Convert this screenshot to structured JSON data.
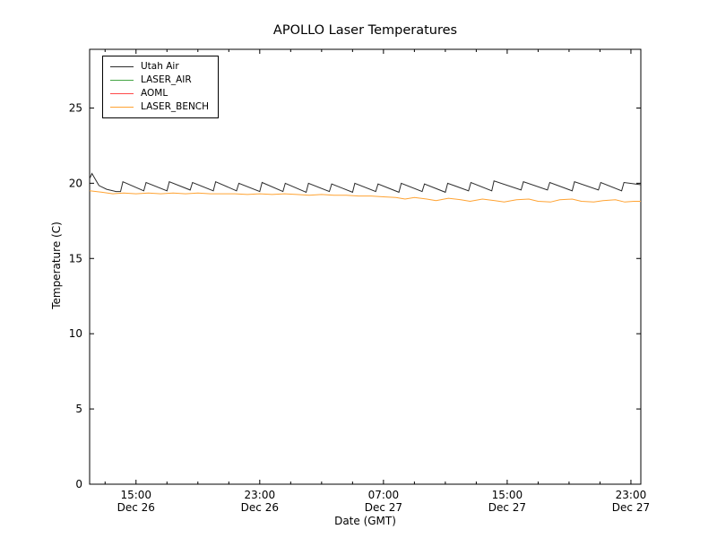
{
  "title": "APOLLO Laser Temperatures",
  "xlabel": "Date (GMT)",
  "ylabel": "Temperature (C)",
  "chart_data": {
    "type": "line",
    "title": "APOLLO Laser Temperatures",
    "xlabel": "Date (GMT)",
    "ylabel": "Temperature (C)",
    "x_unit": "hours since Dec 26 00:00 GMT",
    "xlim": [
      12.0,
      47.64
    ],
    "ylim": [
      0,
      28.9
    ],
    "grid": false,
    "legend_position": "upper left",
    "y_ticks": [
      0,
      5,
      10,
      15,
      20,
      25
    ],
    "x_ticks": [
      {
        "hour": 15,
        "time": "15:00",
        "date": "Dec 26"
      },
      {
        "hour": 23,
        "time": "23:00",
        "date": "Dec 26"
      },
      {
        "hour": 31,
        "time": "07:00",
        "date": "Dec 27"
      },
      {
        "hour": 39,
        "time": "15:00",
        "date": "Dec 27"
      },
      {
        "hour": 47,
        "time": "23:00",
        "date": "Dec 27"
      }
    ],
    "x_minor_tick_step_hours": 2,
    "legend": [
      {
        "label": "Utah Air",
        "color": "#2b2b2b"
      },
      {
        "label": "LASER_AIR",
        "color": "#44a544"
      },
      {
        "label": "AOML",
        "color": "#ff4a4a"
      },
      {
        "label": "LASER_BENCH",
        "color": "#ffa333"
      }
    ],
    "series": [
      {
        "name": "Utah Air",
        "color": "#2b2b2b",
        "points": [
          [
            12.0,
            20.3
          ],
          [
            12.15,
            20.65
          ],
          [
            12.6,
            19.85
          ],
          [
            13.1,
            19.6
          ],
          [
            13.7,
            19.45
          ],
          [
            14.0,
            19.45
          ],
          [
            14.15,
            20.1
          ],
          [
            15.5,
            19.5
          ],
          [
            15.65,
            20.05
          ],
          [
            17.0,
            19.5
          ],
          [
            17.15,
            20.1
          ],
          [
            18.5,
            19.55
          ],
          [
            18.65,
            20.05
          ],
          [
            20.0,
            19.5
          ],
          [
            20.15,
            20.1
          ],
          [
            21.5,
            19.5
          ],
          [
            21.65,
            20.0
          ],
          [
            23.0,
            19.45
          ],
          [
            23.15,
            20.05
          ],
          [
            24.5,
            19.45
          ],
          [
            24.65,
            20.0
          ],
          [
            26.0,
            19.4
          ],
          [
            26.15,
            20.0
          ],
          [
            27.5,
            19.45
          ],
          [
            27.65,
            19.95
          ],
          [
            29.0,
            19.4
          ],
          [
            29.15,
            20.0
          ],
          [
            30.5,
            19.45
          ],
          [
            30.65,
            19.95
          ],
          [
            32.0,
            19.4
          ],
          [
            32.15,
            20.0
          ],
          [
            33.5,
            19.45
          ],
          [
            33.65,
            19.95
          ],
          [
            35.0,
            19.4
          ],
          [
            35.15,
            20.0
          ],
          [
            36.5,
            19.5
          ],
          [
            36.65,
            20.05
          ],
          [
            38.0,
            19.5
          ],
          [
            38.15,
            20.15
          ],
          [
            39.9,
            19.55
          ],
          [
            40.05,
            20.1
          ],
          [
            41.6,
            19.55
          ],
          [
            41.75,
            20.05
          ],
          [
            43.2,
            19.5
          ],
          [
            43.35,
            20.1
          ],
          [
            44.9,
            19.55
          ],
          [
            45.05,
            20.05
          ],
          [
            46.4,
            19.5
          ],
          [
            46.55,
            20.05
          ],
          [
            47.64,
            19.9
          ]
        ]
      },
      {
        "name": "LASER_AIR",
        "color": "#44a544",
        "points": []
      },
      {
        "name": "AOML",
        "color": "#ff4a4a",
        "points": []
      },
      {
        "name": "LASER_BENCH",
        "color": "#ffa333",
        "points": [
          [
            12.0,
            19.5
          ],
          [
            12.8,
            19.4
          ],
          [
            13.5,
            19.3
          ],
          [
            14.2,
            19.35
          ],
          [
            15.0,
            19.3
          ],
          [
            15.8,
            19.35
          ],
          [
            16.6,
            19.3
          ],
          [
            17.4,
            19.35
          ],
          [
            18.2,
            19.3
          ],
          [
            19.0,
            19.35
          ],
          [
            19.8,
            19.3
          ],
          [
            20.6,
            19.3
          ],
          [
            21.4,
            19.3
          ],
          [
            22.2,
            19.25
          ],
          [
            23.0,
            19.3
          ],
          [
            23.8,
            19.25
          ],
          [
            24.6,
            19.3
          ],
          [
            25.4,
            19.25
          ],
          [
            26.2,
            19.2
          ],
          [
            27.0,
            19.25
          ],
          [
            27.8,
            19.2
          ],
          [
            28.6,
            19.2
          ],
          [
            29.4,
            19.15
          ],
          [
            30.2,
            19.15
          ],
          [
            31.0,
            19.1
          ],
          [
            31.8,
            19.05
          ],
          [
            32.4,
            18.95
          ],
          [
            33.0,
            19.05
          ],
          [
            33.8,
            18.95
          ],
          [
            34.4,
            18.85
          ],
          [
            35.2,
            19.0
          ],
          [
            36.0,
            18.9
          ],
          [
            36.6,
            18.8
          ],
          [
            37.4,
            18.95
          ],
          [
            38.2,
            18.85
          ],
          [
            38.8,
            18.75
          ],
          [
            39.6,
            18.9
          ],
          [
            40.4,
            18.95
          ],
          [
            41.0,
            18.8
          ],
          [
            41.8,
            18.75
          ],
          [
            42.4,
            18.9
          ],
          [
            43.2,
            18.95
          ],
          [
            43.8,
            18.8
          ],
          [
            44.6,
            18.75
          ],
          [
            45.2,
            18.85
          ],
          [
            46.0,
            18.9
          ],
          [
            46.6,
            18.75
          ],
          [
            47.2,
            18.8
          ],
          [
            47.64,
            18.8
          ]
        ]
      }
    ]
  }
}
